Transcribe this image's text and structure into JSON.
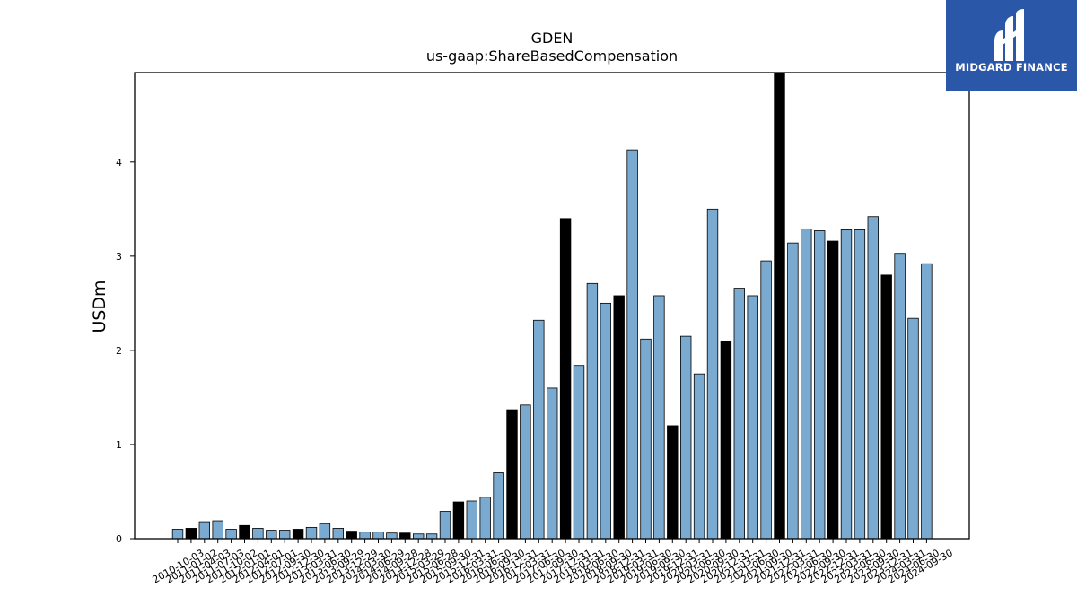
{
  "brand": {
    "name": "MIDGARD FINANCE",
    "logo_icon": "midgard-finance-logo-icon",
    "color": "#2b57a8"
  },
  "chart_data": {
    "type": "bar",
    "title": "GDEN",
    "subtitle": "us-gaap:ShareBasedCompensation",
    "xlabel": "",
    "ylabel": "USDm",
    "ylim": [
      0,
      4.95
    ],
    "yticks": [
      0,
      1,
      2,
      3,
      4
    ],
    "grid": false,
    "colors": {
      "quarter": "#7aaad0",
      "fiscal_year_end": "#000000"
    },
    "categories": [
      "2010-10-03",
      "2011-01-02",
      "2011-04-03",
      "2011-07-03",
      "2011-10-02",
      "2012-01-01",
      "2012-04-01",
      "2012-07-01",
      "2012-09-30",
      "2012-12-30",
      "2013-03-31",
      "2013-06-30",
      "2013-09-29",
      "2013-12-29",
      "2014-03-30",
      "2014-06-29",
      "2014-09-28",
      "2014-12-28",
      "2015-03-29",
      "2015-06-28",
      "2015-09-30",
      "2015-12-31",
      "2016-03-31",
      "2016-06-30",
      "2016-09-30",
      "2016-12-31",
      "2017-03-31",
      "2017-06-30",
      "2017-09-30",
      "2017-12-31",
      "2018-03-31",
      "2018-06-30",
      "2018-09-30",
      "2018-12-31",
      "2019-03-31",
      "2019-06-30",
      "2019-09-30",
      "2019-12-31",
      "2020-03-31",
      "2020-06-30",
      "2020-09-30",
      "2020-12-31",
      "2021-03-31",
      "2021-06-30",
      "2021-09-30",
      "2021-12-31",
      "2022-03-31",
      "2022-06-30",
      "2022-09-30",
      "2022-12-31",
      "2023-03-31",
      "2023-06-30",
      "2023-09-30",
      "2023-12-31",
      "2024-03-31",
      "2024-06-30",
      "2024-09-30"
    ],
    "values": [
      0.1,
      0.11,
      0.18,
      0.19,
      0.1,
      0.14,
      0.11,
      0.09,
      0.09,
      0.1,
      0.12,
      0.16,
      0.11,
      0.08,
      0.07,
      0.07,
      0.06,
      0.06,
      0.05,
      0.05,
      0.29,
      0.39,
      0.4,
      0.44,
      0.7,
      1.37,
      1.42,
      2.32,
      1.6,
      3.4,
      1.84,
      2.71,
      2.5,
      2.58,
      4.13,
      2.12,
      2.58,
      1.2,
      2.15,
      1.75,
      3.5,
      2.1,
      2.66,
      2.58,
      2.95,
      4.95,
      3.14,
      3.29,
      3.27,
      3.16,
      3.28,
      3.28,
      3.42,
      2.8,
      3.03,
      2.34,
      2.92
    ],
    "fiscal_year_end_flags": [
      0,
      1,
      0,
      0,
      0,
      1,
      0,
      0,
      0,
      1,
      0,
      0,
      0,
      1,
      0,
      0,
      0,
      1,
      0,
      0,
      0,
      1,
      0,
      0,
      0,
      1,
      0,
      0,
      0,
      1,
      0,
      0,
      0,
      1,
      0,
      0,
      0,
      1,
      0,
      0,
      0,
      1,
      0,
      0,
      0,
      1,
      0,
      0,
      0,
      1,
      0,
      0,
      0,
      1,
      0,
      0,
      0
    ]
  }
}
